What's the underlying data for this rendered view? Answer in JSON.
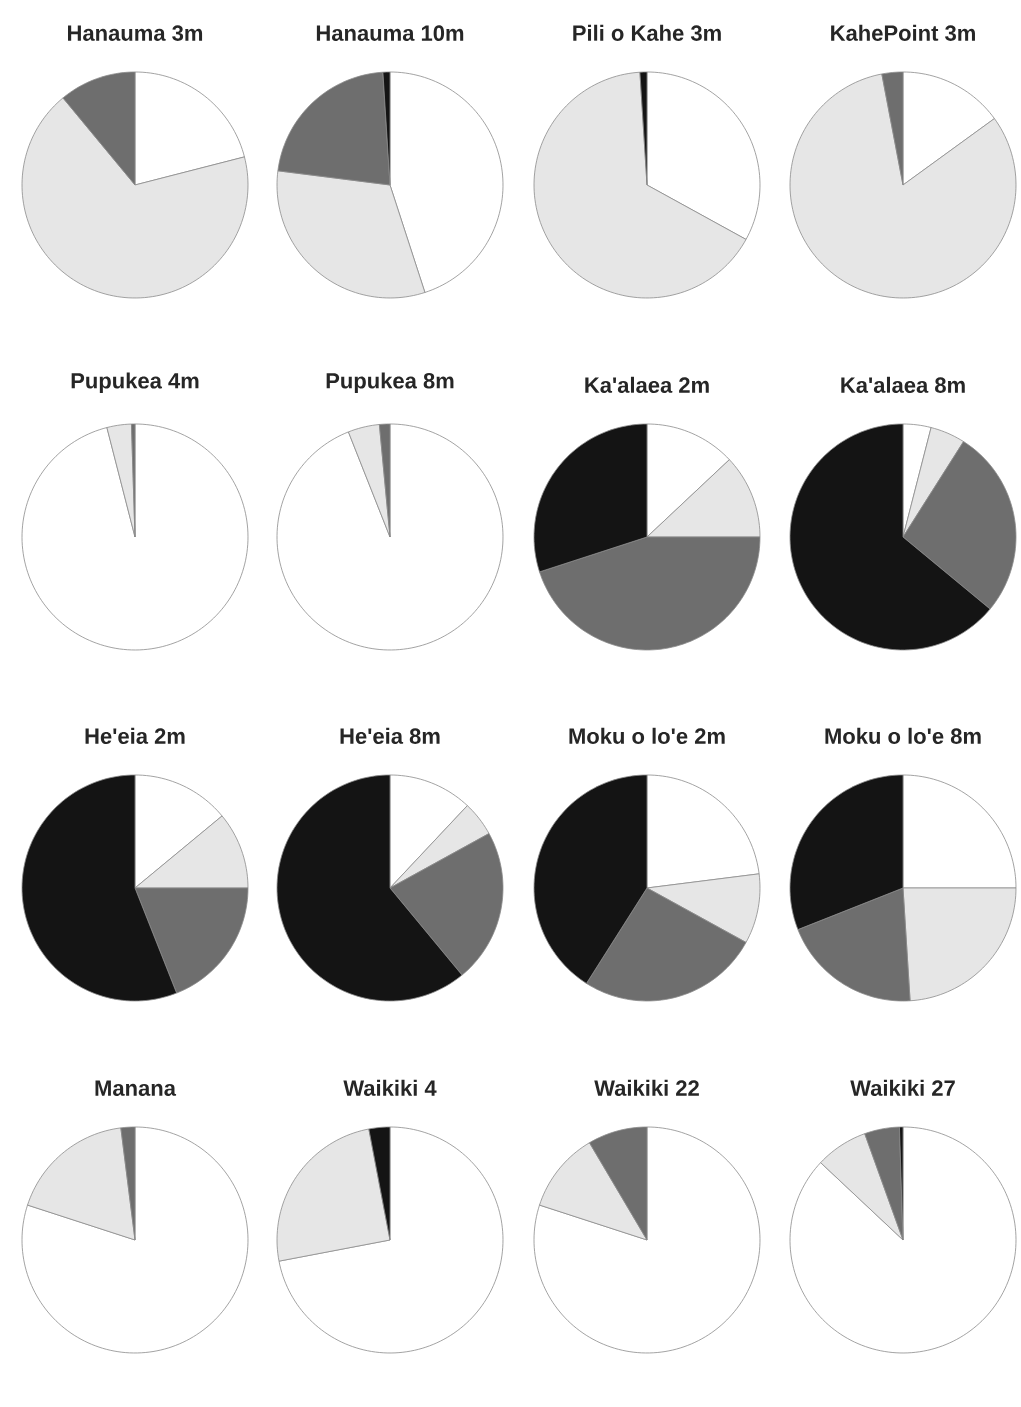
{
  "chart_data": [
    {
      "type": "pie",
      "title": "Hanauma 3m",
      "categories": [
        null,
        null,
        null,
        null
      ],
      "values": [
        21,
        68,
        11,
        0
      ],
      "colors": [
        "#ffffff",
        "#e6e6e6",
        "#6e6e6e",
        "#141414"
      ]
    },
    {
      "type": "pie",
      "title": "Hanauma 10m",
      "categories": [
        null,
        null,
        null,
        null
      ],
      "values": [
        45,
        32,
        22,
        1
      ],
      "colors": [
        "#ffffff",
        "#e6e6e6",
        "#6e6e6e",
        "#141414"
      ]
    },
    {
      "type": "pie",
      "title": "Pili o Kahe 3m",
      "categories": [
        null,
        null,
        null,
        null
      ],
      "values": [
        33,
        66,
        0,
        1
      ],
      "colors": [
        "#ffffff",
        "#e6e6e6",
        "#6e6e6e",
        "#141414"
      ]
    },
    {
      "type": "pie",
      "title": "KahePoint 3m",
      "categories": [
        null,
        null,
        null,
        null
      ],
      "values": [
        15,
        82,
        3,
        0
      ],
      "colors": [
        "#ffffff",
        "#e6e6e6",
        "#6e6e6e",
        "#141414"
      ]
    },
    {
      "type": "pie",
      "title": "Pupukea 4m",
      "categories": [
        null,
        null,
        null,
        null
      ],
      "values": [
        96,
        3.5,
        0.5,
        0
      ],
      "colors": [
        "#ffffff",
        "#e6e6e6",
        "#6e6e6e",
        "#141414"
      ]
    },
    {
      "type": "pie",
      "title": "Pupukea 8m",
      "categories": [
        null,
        null,
        null,
        null
      ],
      "values": [
        94,
        4.5,
        1.5,
        0
      ],
      "colors": [
        "#ffffff",
        "#e6e6e6",
        "#6e6e6e",
        "#141414"
      ]
    },
    {
      "type": "pie",
      "title": "Ka'alaea 2m",
      "categories": [
        null,
        null,
        null,
        null
      ],
      "values": [
        13,
        12,
        45,
        30
      ],
      "colors": [
        "#ffffff",
        "#e6e6e6",
        "#6e6e6e",
        "#141414"
      ]
    },
    {
      "type": "pie",
      "title": "Ka'alaea 8m",
      "categories": [
        null,
        null,
        null,
        null
      ],
      "values": [
        4,
        5,
        27,
        64
      ],
      "colors": [
        "#ffffff",
        "#e6e6e6",
        "#6e6e6e",
        "#141414"
      ]
    },
    {
      "type": "pie",
      "title": "He'eia 2m",
      "categories": [
        null,
        null,
        null,
        null
      ],
      "values": [
        14,
        11,
        19,
        56
      ],
      "colors": [
        "#ffffff",
        "#e6e6e6",
        "#6e6e6e",
        "#141414"
      ]
    },
    {
      "type": "pie",
      "title": "He'eia 8m",
      "categories": [
        null,
        null,
        null,
        null
      ],
      "values": [
        12,
        5,
        22,
        61
      ],
      "colors": [
        "#ffffff",
        "#e6e6e6",
        "#6e6e6e",
        "#141414"
      ]
    },
    {
      "type": "pie",
      "title": "Moku o lo'e 2m",
      "categories": [
        null,
        null,
        null,
        null
      ],
      "values": [
        23,
        10,
        26,
        41
      ],
      "colors": [
        "#ffffff",
        "#e6e6e6",
        "#6e6e6e",
        "#141414"
      ]
    },
    {
      "type": "pie",
      "title": "Moku o lo'e 8m",
      "categories": [
        null,
        null,
        null,
        null
      ],
      "values": [
        25,
        24,
        20,
        31
      ],
      "colors": [
        "#ffffff",
        "#e6e6e6",
        "#6e6e6e",
        "#141414"
      ]
    },
    {
      "type": "pie",
      "title": "Manana",
      "categories": [
        null,
        null,
        null,
        null
      ],
      "values": [
        80,
        18,
        2,
        0
      ],
      "colors": [
        "#ffffff",
        "#e6e6e6",
        "#6e6e6e",
        "#141414"
      ]
    },
    {
      "type": "pie",
      "title": "Waikiki 4",
      "categories": [
        null,
        null,
        null,
        null
      ],
      "values": [
        72,
        25,
        0,
        3
      ],
      "colors": [
        "#ffffff",
        "#e6e6e6",
        "#6e6e6e",
        "#141414"
      ]
    },
    {
      "type": "pie",
      "title": "Waikiki 22",
      "categories": [
        null,
        null,
        null,
        null
      ],
      "values": [
        80,
        11.5,
        8.5,
        0
      ],
      "colors": [
        "#ffffff",
        "#e6e6e6",
        "#6e6e6e",
        "#141414"
      ]
    },
    {
      "type": "pie",
      "title": "Waikiki 27",
      "categories": [
        null,
        null,
        null,
        null
      ],
      "values": [
        87,
        7.5,
        5,
        0.5
      ],
      "colors": [
        "#ffffff",
        "#e6e6e6",
        "#6e6e6e",
        "#141414"
      ]
    }
  ]
}
